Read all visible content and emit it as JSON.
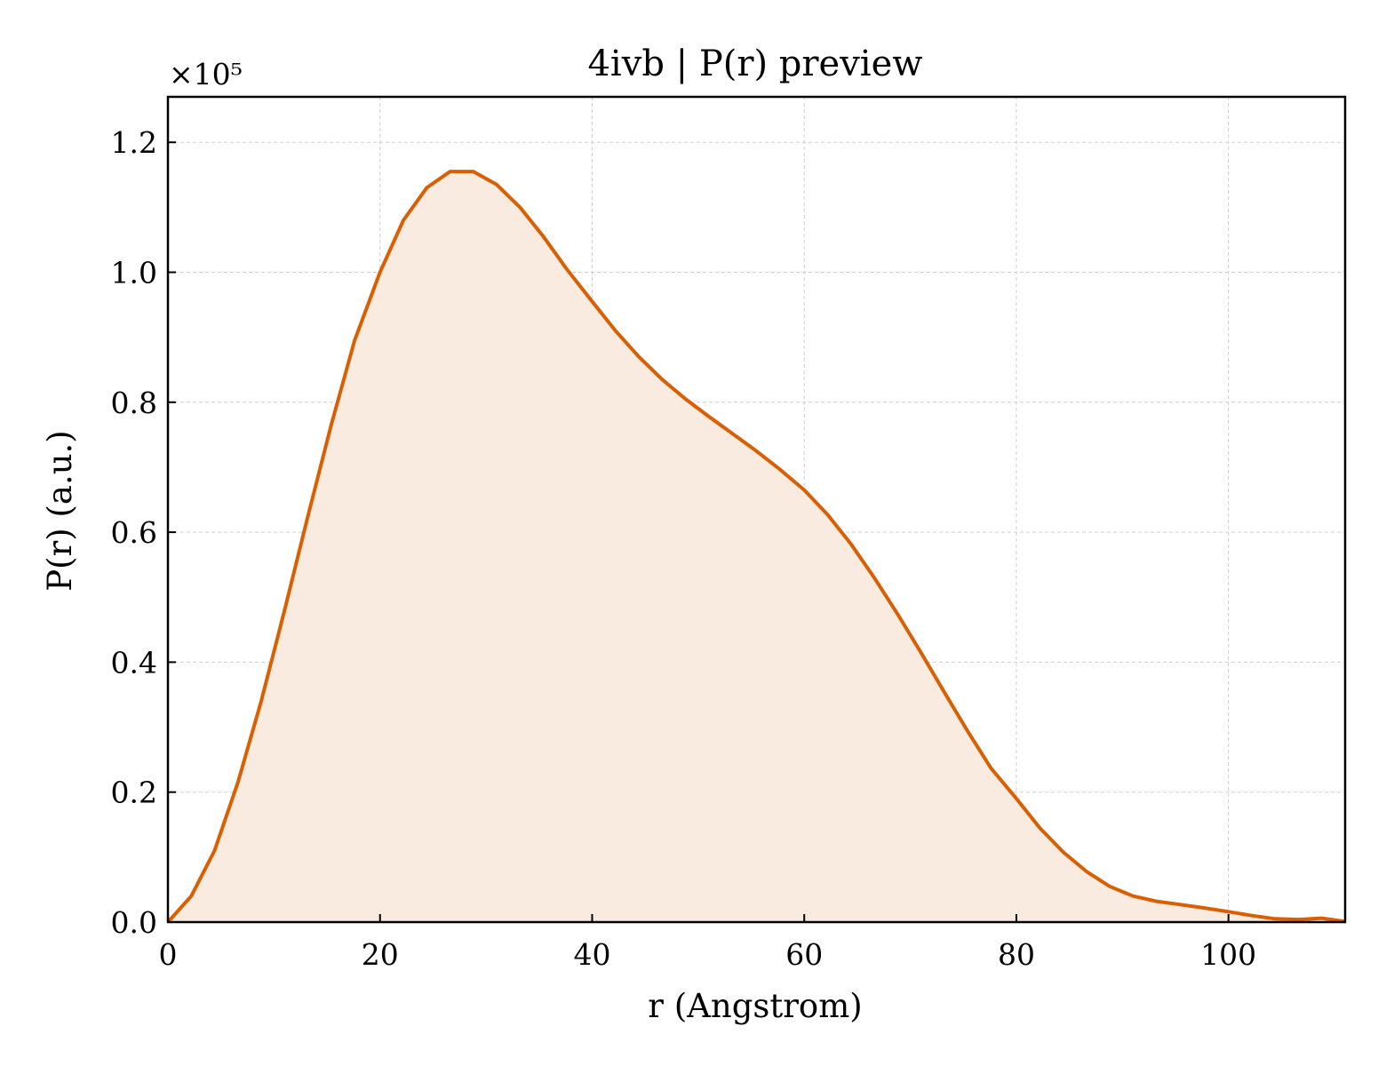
{
  "chart_data": {
    "type": "area",
    "title": "4ivb | P(r) preview",
    "xlabel": "r (Angstrom)",
    "ylabel": "P(r) (a.u.)",
    "y_offset_label": "×10⁵",
    "y_scale": 100000,
    "xlim": [
      0,
      111
    ],
    "ylim": [
      0,
      1.27
    ],
    "xticks": [
      0,
      20,
      40,
      60,
      80,
      100
    ],
    "yticks": [
      0.0,
      0.2,
      0.4,
      0.6,
      0.8,
      1.0,
      1.2
    ],
    "xtick_labels": [
      "0",
      "20",
      "40",
      "60",
      "80",
      "100"
    ],
    "ytick_labels": [
      "0.0",
      "0.2",
      "0.4",
      "0.6",
      "0.8",
      "1.0",
      "1.2"
    ],
    "grid": true,
    "line_color": "#d95f02",
    "fill_color": "#f9ebe0",
    "series": [
      {
        "x": [
          0,
          2.2,
          4.4,
          6.6,
          8.8,
          11,
          13.2,
          15.4,
          17.6,
          20,
          22.2,
          24.4,
          26.6,
          28.8,
          31,
          33.2,
          35.4,
          37.6,
          40,
          42.2,
          44.4,
          46.6,
          48.8,
          51,
          53.2,
          55.4,
          57.6,
          60,
          62.2,
          64.4,
          66.6,
          68.8,
          71,
          73.2,
          75.4,
          77.6,
          80,
          82.2,
          84.4,
          86.6,
          88.8,
          91,
          93.2,
          95.4,
          97.6,
          100,
          102.2,
          104.4,
          106.6,
          108.8,
          111
        ],
        "y": [
          0.0,
          0.04,
          0.11,
          0.215,
          0.34,
          0.48,
          0.625,
          0.765,
          0.895,
          1.0,
          1.08,
          1.13,
          1.155,
          1.155,
          1.135,
          1.1,
          1.055,
          1.005,
          0.955,
          0.91,
          0.87,
          0.835,
          0.805,
          0.778,
          0.752,
          0.726,
          0.698,
          0.665,
          0.627,
          0.582,
          0.53,
          0.474,
          0.415,
          0.354,
          0.294,
          0.237,
          0.19,
          0.145,
          0.108,
          0.078,
          0.055,
          0.04,
          0.032,
          0.027,
          0.022,
          0.016,
          0.01,
          0.005,
          0.004,
          0.006,
          0.001
        ]
      }
    ]
  }
}
